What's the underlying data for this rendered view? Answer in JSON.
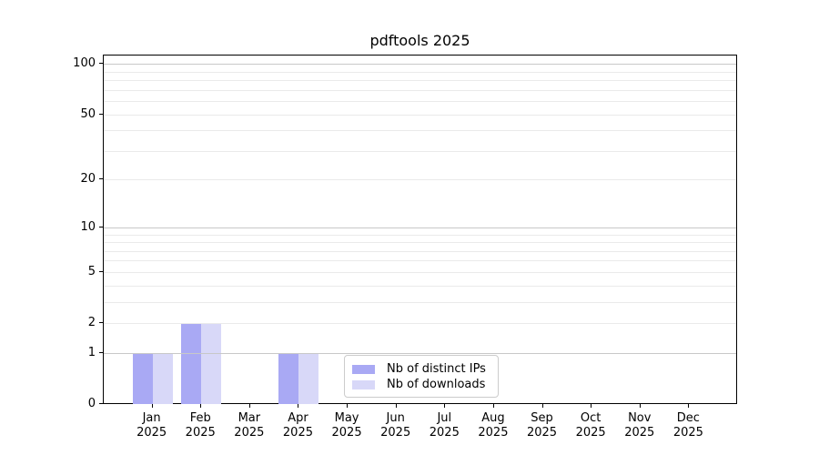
{
  "title": "pdftools 2025",
  "chart_data": {
    "type": "bar",
    "title": "pdftools 2025",
    "categories": [
      "Jan 2025",
      "Feb 2025",
      "Mar 2025",
      "Apr 2025",
      "May 2025",
      "Jun 2025",
      "Jul 2025",
      "Aug 2025",
      "Sep 2025",
      "Oct 2025",
      "Nov 2025",
      "Dec 2025"
    ],
    "series": [
      {
        "name": "Nb of distinct IPs",
        "color": "#a9a9f4",
        "values": [
          1,
          2,
          0,
          1,
          0,
          0,
          0,
          0,
          0,
          0,
          0,
          0
        ]
      },
      {
        "name": "Nb of downloads",
        "color": "#d8d8f8",
        "values": [
          1,
          2,
          0,
          1,
          0,
          0,
          0,
          0,
          0,
          0,
          0,
          0
        ]
      }
    ],
    "xlabel": "",
    "ylabel": "",
    "yticks": [
      0,
      1,
      2,
      5,
      10,
      20,
      50,
      100
    ],
    "yticks_minor": [
      3,
      4,
      6,
      7,
      8,
      9,
      30,
      40,
      60,
      70,
      80,
      90
    ],
    "grid_decade_values": [
      1,
      10,
      100
    ],
    "scale": "log10(1+y)",
    "ylim": [
      0,
      113
    ],
    "grid": true,
    "legend_position": "lower center",
    "colors": {
      "axis": "#000000",
      "grid_major": "#c8c8c8",
      "grid_minor": "#eaeaea",
      "background": "#ffffff"
    }
  }
}
